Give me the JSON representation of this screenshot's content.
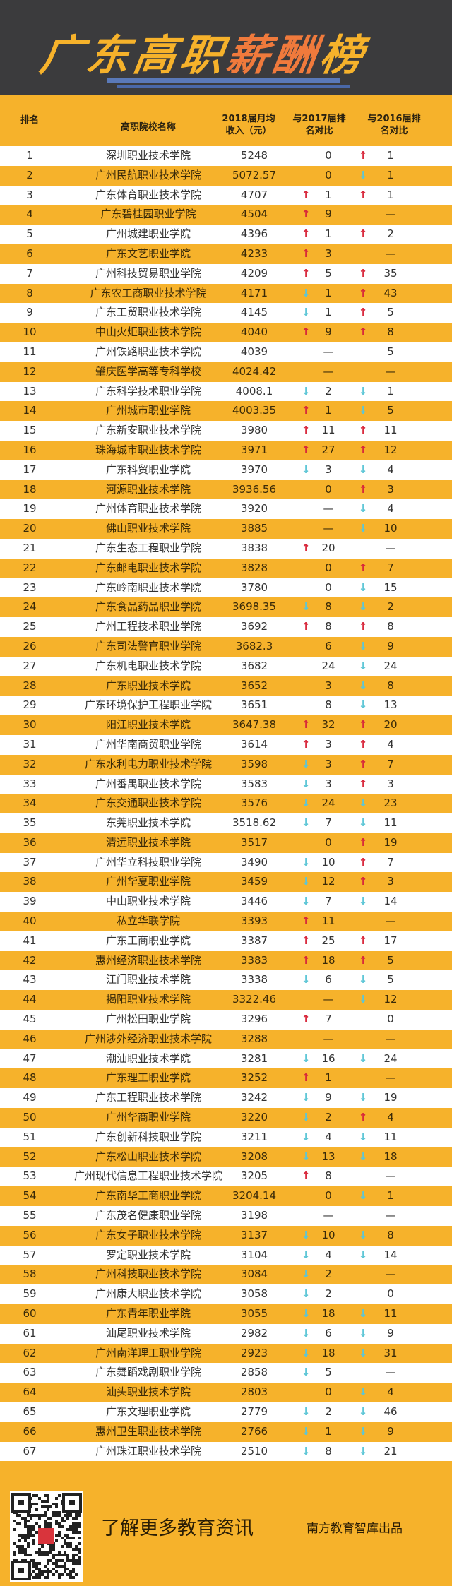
{
  "banner": {
    "title_parts": [
      "广东高职",
      "薪酬",
      "榜"
    ]
  },
  "header": {
    "rank": "排名",
    "name": "高职院校名称",
    "income": "2018届月均收入（元）",
    "vs2017": "与2017届排名对比",
    "vs2016": "与2016届排名对比"
  },
  "colors": {
    "yellow": "#f6b22b",
    "dark": "#3b3b3d",
    "accent": "#f07a3c",
    "up": "#d8263a",
    "down": "#5cc6d6"
  },
  "rows": [
    {
      "rank": "1",
      "name": "深圳职业技术学院",
      "income": "5248",
      "d17": "",
      "v17": "0",
      "d16": "up",
      "v16": "1"
    },
    {
      "rank": "2",
      "name": "广州民航职业技术学院",
      "income": "5072.57",
      "d17": "",
      "v17": "0",
      "d16": "down",
      "v16": "1"
    },
    {
      "rank": "3",
      "name": "广东体育职业技术学院",
      "income": "4707",
      "d17": "up",
      "v17": "1",
      "d16": "up",
      "v16": "1"
    },
    {
      "rank": "4",
      "name": "广东碧桂园职业学院",
      "income": "4504",
      "d17": "up",
      "v17": "9",
      "d16": "",
      "v16": "—"
    },
    {
      "rank": "5",
      "name": "广州城建职业学院",
      "income": "4396",
      "d17": "up",
      "v17": "1",
      "d16": "up",
      "v16": "2"
    },
    {
      "rank": "6",
      "name": "广东文艺职业学院",
      "income": "4233",
      "d17": "up",
      "v17": "3",
      "d16": "",
      "v16": "—"
    },
    {
      "rank": "7",
      "name": "广州科技贸易职业学院",
      "income": "4209",
      "d17": "up",
      "v17": "5",
      "d16": "up",
      "v16": "35"
    },
    {
      "rank": "8",
      "name": "广东农工商职业技术学院",
      "income": "4171",
      "d17": "down",
      "v17": "1",
      "d16": "up",
      "v16": "43"
    },
    {
      "rank": "9",
      "name": "广东工贸职业技术学院",
      "income": "4145",
      "d17": "down",
      "v17": "1",
      "d16": "up",
      "v16": "5"
    },
    {
      "rank": "10",
      "name": "中山火炬职业技术学院",
      "income": "4040",
      "d17": "up",
      "v17": "9",
      "d16": "up",
      "v16": "8"
    },
    {
      "rank": "11",
      "name": "广州铁路职业技术学院",
      "income": "4039",
      "d17": "",
      "v17": "—",
      "d16": "",
      "v16": "5"
    },
    {
      "rank": "12",
      "name": "肇庆医学高等专科学校",
      "income": "4024.42",
      "d17": "",
      "v17": "—",
      "d16": "",
      "v16": "—"
    },
    {
      "rank": "13",
      "name": "广东科学技术职业学院",
      "income": "4008.1",
      "d17": "down",
      "v17": "2",
      "d16": "down",
      "v16": "1"
    },
    {
      "rank": "14",
      "name": "广州城市职业学院",
      "income": "4003.35",
      "d17": "up",
      "v17": "1",
      "d16": "down",
      "v16": "5"
    },
    {
      "rank": "15",
      "name": "广东新安职业技术学院",
      "income": "3980",
      "d17": "up",
      "v17": "11",
      "d16": "up",
      "v16": "11"
    },
    {
      "rank": "16",
      "name": "珠海城市职业技术学院",
      "income": "3971",
      "d17": "up",
      "v17": "27",
      "d16": "up",
      "v16": "12"
    },
    {
      "rank": "17",
      "name": "广东科贸职业学院",
      "income": "3970",
      "d17": "down",
      "v17": "3",
      "d16": "down",
      "v16": "4"
    },
    {
      "rank": "18",
      "name": "河源职业技术学院",
      "income": "3936.56",
      "d17": "",
      "v17": "0",
      "d16": "up",
      "v16": "3"
    },
    {
      "rank": "19",
      "name": "广州体育职业技术学院",
      "income": "3920",
      "d17": "",
      "v17": "—",
      "d16": "down",
      "v16": "4"
    },
    {
      "rank": "20",
      "name": "佛山职业技术学院",
      "income": "3885",
      "d17": "",
      "v17": "—",
      "d16": "down",
      "v16": "10"
    },
    {
      "rank": "21",
      "name": "广东生态工程职业学院",
      "income": "3838",
      "d17": "up",
      "v17": "20",
      "d16": "",
      "v16": "—"
    },
    {
      "rank": "22",
      "name": "广东邮电职业技术学院",
      "income": "3828",
      "d17": "",
      "v17": "0",
      "d16": "up",
      "v16": "7"
    },
    {
      "rank": "23",
      "name": "广东岭南职业技术学院",
      "income": "3780",
      "d17": "",
      "v17": "0",
      "d16": "down",
      "v16": "15"
    },
    {
      "rank": "24",
      "name": "广东食品药品职业学院",
      "income": "3698.35",
      "d17": "down",
      "v17": "8",
      "d16": "down",
      "v16": "2"
    },
    {
      "rank": "25",
      "name": "广州工程技术职业学院",
      "income": "3692",
      "d17": "up",
      "v17": "8",
      "d16": "up",
      "v16": "8"
    },
    {
      "rank": "26",
      "name": "广东司法警官职业学院",
      "income": "3682.3",
      "d17": "",
      "v17": "6",
      "d16": "down",
      "v16": "9"
    },
    {
      "rank": "27",
      "name": "广东机电职业技术学院",
      "income": "3682",
      "d17": "",
      "v17": "24",
      "d16": "down",
      "v16": "24"
    },
    {
      "rank": "28",
      "name": "广东职业技术学院",
      "income": "3652",
      "d17": "",
      "v17": "3",
      "d16": "down",
      "v16": "8"
    },
    {
      "rank": "29",
      "name": "广东环境保护工程职业学院",
      "income": "3651",
      "d17": "",
      "v17": "8",
      "d16": "down",
      "v16": "13"
    },
    {
      "rank": "30",
      "name": "阳江职业技术学院",
      "income": "3647.38",
      "d17": "up",
      "v17": "32",
      "d16": "up",
      "v16": "20"
    },
    {
      "rank": "31",
      "name": "广州华南商贸职业学院",
      "income": "3614",
      "d17": "up",
      "v17": "3",
      "d16": "up",
      "v16": "4"
    },
    {
      "rank": "32",
      "name": "广东水利电力职业技术学院",
      "income": "3598",
      "d17": "down",
      "v17": "3",
      "d16": "up",
      "v16": "7"
    },
    {
      "rank": "33",
      "name": "广州番禺职业技术学院",
      "income": "3583",
      "d17": "down",
      "v17": "3",
      "d16": "up",
      "v16": "3"
    },
    {
      "rank": "34",
      "name": "广东交通职业技术学院",
      "income": "3576",
      "d17": "down",
      "v17": "24",
      "d16": "down",
      "v16": "23"
    },
    {
      "rank": "35",
      "name": "东莞职业技术学院",
      "income": "3518.62",
      "d17": "down",
      "v17": "7",
      "d16": "down",
      "v16": "11"
    },
    {
      "rank": "36",
      "name": "清远职业技术学院",
      "income": "3517",
      "d17": "",
      "v17": "0",
      "d16": "up",
      "v16": "19"
    },
    {
      "rank": "37",
      "name": "广州华立科技职业学院",
      "income": "3490",
      "d17": "down",
      "v17": "10",
      "d16": "up",
      "v16": "7"
    },
    {
      "rank": "38",
      "name": "广州华夏职业学院",
      "income": "3459",
      "d17": "down",
      "v17": "12",
      "d16": "up",
      "v16": "3"
    },
    {
      "rank": "39",
      "name": "中山职业技术学院",
      "income": "3446",
      "d17": "down",
      "v17": "7",
      "d16": "down",
      "v16": "14"
    },
    {
      "rank": "40",
      "name": "私立华联学院",
      "income": "3393",
      "d17": "up",
      "v17": "11",
      "d16": "",
      "v16": "—"
    },
    {
      "rank": "41",
      "name": "广东工商职业学院",
      "income": "3387",
      "d17": "up",
      "v17": "25",
      "d16": "up",
      "v16": "17"
    },
    {
      "rank": "42",
      "name": "惠州经济职业技术学院",
      "income": "3383",
      "d17": "up",
      "v17": "18",
      "d16": "up",
      "v16": "5"
    },
    {
      "rank": "43",
      "name": "江门职业技术学院",
      "income": "3338",
      "d17": "down",
      "v17": "6",
      "d16": "down",
      "v16": "5"
    },
    {
      "rank": "44",
      "name": "揭阳职业技术学院",
      "income": "3322.46",
      "d17": "",
      "v17": "—",
      "d16": "down",
      "v16": "12"
    },
    {
      "rank": "45",
      "name": "广州松田职业学院",
      "income": "3296",
      "d17": "up",
      "v17": "7",
      "d16": "",
      "v16": "0"
    },
    {
      "rank": "46",
      "name": "广州涉外经济职业技术学院",
      "income": "3288",
      "d17": "",
      "v17": "—",
      "d16": "",
      "v16": "—"
    },
    {
      "rank": "47",
      "name": "潮汕职业技术学院",
      "income": "3281",
      "d17": "down",
      "v17": "16",
      "d16": "down",
      "v16": "24"
    },
    {
      "rank": "48",
      "name": "广东理工职业学院",
      "income": "3252",
      "d17": "up",
      "v17": "1",
      "d16": "",
      "v16": "—"
    },
    {
      "rank": "49",
      "name": "广东工程职业技术学院",
      "income": "3242",
      "d17": "down",
      "v17": "9",
      "d16": "down",
      "v16": "19"
    },
    {
      "rank": "50",
      "name": "广州华商职业学院",
      "income": "3220",
      "d17": "down",
      "v17": "2",
      "d16": "up",
      "v16": "4"
    },
    {
      "rank": "51",
      "name": "广东创新科技职业学院",
      "income": "3211",
      "d17": "down",
      "v17": "4",
      "d16": "down",
      "v16": "11"
    },
    {
      "rank": "52",
      "name": "广东松山职业技术学院",
      "income": "3208",
      "d17": "down",
      "v17": "13",
      "d16": "down",
      "v16": "18"
    },
    {
      "rank": "53",
      "name": "广州现代信息工程职业技术学院",
      "income": "3205",
      "d17": "up",
      "v17": "8",
      "d16": "",
      "v16": "—"
    },
    {
      "rank": "54",
      "name": "广东南华工商职业学院",
      "income": "3204.14",
      "d17": "",
      "v17": "0",
      "d16": "down",
      "v16": "1"
    },
    {
      "rank": "55",
      "name": "广东茂名健康职业学院",
      "income": "3198",
      "d17": "",
      "v17": "—",
      "d16": "",
      "v16": "—"
    },
    {
      "rank": "56",
      "name": "广东女子职业技术学院",
      "income": "3137",
      "d17": "down",
      "v17": "10",
      "d16": "down",
      "v16": "8"
    },
    {
      "rank": "57",
      "name": "罗定职业技术学院",
      "income": "3104",
      "d17": "down",
      "v17": "4",
      "d16": "down",
      "v16": "14"
    },
    {
      "rank": "58",
      "name": "广州科技职业技术学院",
      "income": "3084",
      "d17": "down",
      "v17": "2",
      "d16": "",
      "v16": "—"
    },
    {
      "rank": "59",
      "name": "广州康大职业技术学院",
      "income": "3058",
      "d17": "down",
      "v17": "2",
      "d16": "",
      "v16": "0"
    },
    {
      "rank": "60",
      "name": "广东青年职业学院",
      "income": "3055",
      "d17": "down",
      "v17": "18",
      "d16": "down",
      "v16": "11"
    },
    {
      "rank": "61",
      "name": "汕尾职业技术学院",
      "income": "2982",
      "d17": "down",
      "v17": "6",
      "d16": "down",
      "v16": "9"
    },
    {
      "rank": "62",
      "name": "广州南洋理工职业学院",
      "income": "2923",
      "d17": "down",
      "v17": "18",
      "d16": "down",
      "v16": "31"
    },
    {
      "rank": "63",
      "name": "广东舞蹈戏剧职业学院",
      "income": "2858",
      "d17": "down",
      "v17": "5",
      "d16": "",
      "v16": "—"
    },
    {
      "rank": "64",
      "name": "汕头职业技术学院",
      "income": "2803",
      "d17": "",
      "v17": "0",
      "d16": "down",
      "v16": "4"
    },
    {
      "rank": "65",
      "name": "广东文理职业学院",
      "income": "2779",
      "d17": "down",
      "v17": "2",
      "d16": "down",
      "v16": "46"
    },
    {
      "rank": "66",
      "name": "惠州卫生职业技术学院",
      "income": "2766",
      "d17": "down",
      "v17": "1",
      "d16": "down",
      "v16": "9"
    },
    {
      "rank": "67",
      "name": "广州珠江职业技术学院",
      "income": "2510",
      "d17": "down",
      "v17": "8",
      "d16": "down",
      "v16": "21"
    }
  ],
  "footer": {
    "qr_icon": "qr-code-icon",
    "slogan": "了解更多教育资讯",
    "credit": "南方教育智库出品"
  }
}
